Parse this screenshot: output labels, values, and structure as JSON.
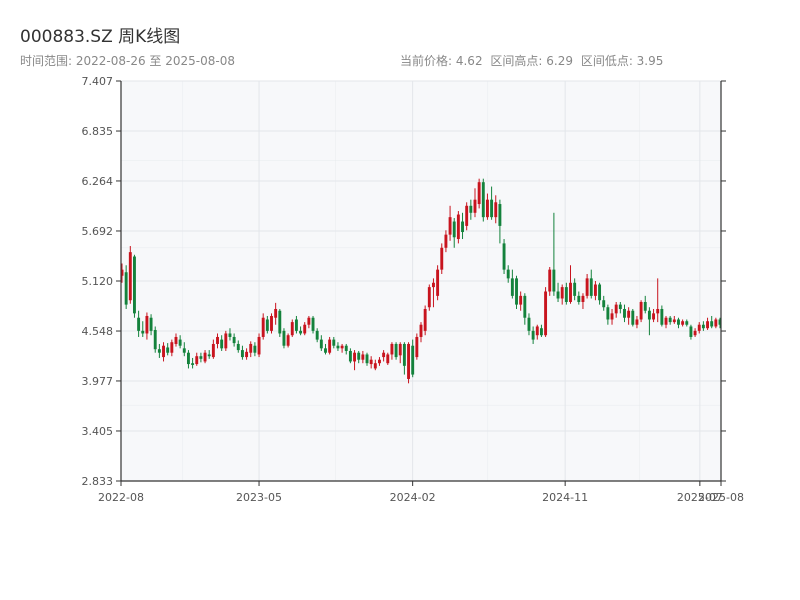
{
  "header": {
    "title": "000883.SZ 周K线图",
    "range_text": "时间范围: 2022-08-26 至 2025-08-08",
    "current_price": "当前价格: 4.62",
    "range_high": "区间高点: 6.29",
    "range_low": "区间低点: 3.95"
  },
  "colors": {
    "up": "#c8141e",
    "down": "#14823c",
    "plot_bg": "#f7f8fa",
    "axis": "#333333",
    "grid": "#e3e6ea"
  },
  "chart_data": {
    "type": "candlestick",
    "title": "000883.SZ 周K线图",
    "x_range": [
      "2022-08-26",
      "2025-08-08"
    ],
    "ylim": [
      2.833,
      7.407
    ],
    "y_ticks": [
      "2.833",
      "3.405",
      "3.977",
      "4.548",
      "5.120",
      "5.692",
      "6.264",
      "6.835",
      "7.407"
    ],
    "x_ticks": [
      {
        "label": "2022-08",
        "date": "2022-08-26"
      },
      {
        "label": "2023-05",
        "date": "2023-05-01"
      },
      {
        "label": "2024-02",
        "date": "2024-02-01"
      },
      {
        "label": "2024-11",
        "date": "2024-11-01"
      },
      {
        "label": "2025-07",
        "date": "2025-07-01"
      },
      {
        "label": "2025-08",
        "date": "2025-08-08"
      }
    ],
    "candles": [
      {
        "o": 5.18,
        "c": 5.25,
        "h": 5.32,
        "l": 5.1
      },
      {
        "o": 5.22,
        "c": 4.85,
        "h": 5.3,
        "l": 4.8
      },
      {
        "o": 4.9,
        "c": 5.45,
        "h": 5.52,
        "l": 4.86
      },
      {
        "o": 5.4,
        "c": 4.75,
        "h": 5.42,
        "l": 4.7
      },
      {
        "o": 4.7,
        "c": 4.55,
        "h": 4.78,
        "l": 4.48
      },
      {
        "o": 4.55,
        "c": 4.52,
        "h": 4.66,
        "l": 4.48
      },
      {
        "o": 4.52,
        "c": 4.72,
        "h": 4.76,
        "l": 4.45
      },
      {
        "o": 4.7,
        "c": 4.55,
        "h": 4.74,
        "l": 4.5
      },
      {
        "o": 4.56,
        "c": 4.34,
        "h": 4.6,
        "l": 4.3
      },
      {
        "o": 4.34,
        "c": 4.3,
        "h": 4.4,
        "l": 4.24
      },
      {
        "o": 4.25,
        "c": 4.38,
        "h": 4.42,
        "l": 4.2
      },
      {
        "o": 4.36,
        "c": 4.3,
        "h": 4.41,
        "l": 4.27
      },
      {
        "o": 4.3,
        "c": 4.42,
        "h": 4.45,
        "l": 4.26
      },
      {
        "o": 4.4,
        "c": 4.48,
        "h": 4.52,
        "l": 4.37
      },
      {
        "o": 4.45,
        "c": 4.38,
        "h": 4.5,
        "l": 4.35
      },
      {
        "o": 4.35,
        "c": 4.3,
        "h": 4.42,
        "l": 4.26
      },
      {
        "o": 4.3,
        "c": 4.17,
        "h": 4.33,
        "l": 4.12
      },
      {
        "o": 4.18,
        "c": 4.16,
        "h": 4.24,
        "l": 4.12
      },
      {
        "o": 4.17,
        "c": 4.26,
        "h": 4.3,
        "l": 4.15
      },
      {
        "o": 4.26,
        "c": 4.23,
        "h": 4.3,
        "l": 4.19
      },
      {
        "o": 4.2,
        "c": 4.3,
        "h": 4.33,
        "l": 4.18
      },
      {
        "o": 4.28,
        "c": 4.26,
        "h": 4.33,
        "l": 4.23
      },
      {
        "o": 4.25,
        "c": 4.4,
        "h": 4.45,
        "l": 4.23
      },
      {
        "o": 4.4,
        "c": 4.48,
        "h": 4.52,
        "l": 4.35
      },
      {
        "o": 4.45,
        "c": 4.35,
        "h": 4.5,
        "l": 4.32
      },
      {
        "o": 4.35,
        "c": 4.52,
        "h": 4.55,
        "l": 4.32
      },
      {
        "o": 4.52,
        "c": 4.48,
        "h": 4.58,
        "l": 4.44
      },
      {
        "o": 4.48,
        "c": 4.41,
        "h": 4.52,
        "l": 4.37
      },
      {
        "o": 4.4,
        "c": 4.33,
        "h": 4.44,
        "l": 4.3
      },
      {
        "o": 4.33,
        "c": 4.25,
        "h": 4.38,
        "l": 4.22
      },
      {
        "o": 4.25,
        "c": 4.31,
        "h": 4.35,
        "l": 4.22
      },
      {
        "o": 4.3,
        "c": 4.4,
        "h": 4.43,
        "l": 4.25
      },
      {
        "o": 4.38,
        "c": 4.3,
        "h": 4.42,
        "l": 4.26
      },
      {
        "o": 4.28,
        "c": 4.48,
        "h": 4.52,
        "l": 4.25
      },
      {
        "o": 4.48,
        "c": 4.7,
        "h": 4.75,
        "l": 4.45
      },
      {
        "o": 4.68,
        "c": 4.55,
        "h": 4.72,
        "l": 4.52
      },
      {
        "o": 4.55,
        "c": 4.72,
        "h": 4.75,
        "l": 4.52
      },
      {
        "o": 4.7,
        "c": 4.8,
        "h": 4.87,
        "l": 4.62
      },
      {
        "o": 4.78,
        "c": 4.52,
        "h": 4.8,
        "l": 4.48
      },
      {
        "o": 4.55,
        "c": 4.38,
        "h": 4.58,
        "l": 4.35
      },
      {
        "o": 4.38,
        "c": 4.5,
        "h": 4.52,
        "l": 4.36
      },
      {
        "o": 4.5,
        "c": 4.65,
        "h": 4.68,
        "l": 4.48
      },
      {
        "o": 4.68,
        "c": 4.55,
        "h": 4.72,
        "l": 4.52
      },
      {
        "o": 4.55,
        "c": 4.52,
        "h": 4.6,
        "l": 4.5
      },
      {
        "o": 4.52,
        "c": 4.62,
        "h": 4.65,
        "l": 4.5
      },
      {
        "o": 4.62,
        "c": 4.7,
        "h": 4.72,
        "l": 4.58
      },
      {
        "o": 4.7,
        "c": 4.55,
        "h": 4.72,
        "l": 4.52
      },
      {
        "o": 4.55,
        "c": 4.45,
        "h": 4.58,
        "l": 4.42
      },
      {
        "o": 4.45,
        "c": 4.35,
        "h": 4.5,
        "l": 4.32
      },
      {
        "o": 4.35,
        "c": 4.3,
        "h": 4.4,
        "l": 4.28
      },
      {
        "o": 4.3,
        "c": 4.45,
        "h": 4.48,
        "l": 4.28
      },
      {
        "o": 4.45,
        "c": 4.38,
        "h": 4.48,
        "l": 4.35
      },
      {
        "o": 4.38,
        "c": 4.35,
        "h": 4.42,
        "l": 4.32
      },
      {
        "o": 4.35,
        "c": 4.38,
        "h": 4.4,
        "l": 4.3
      },
      {
        "o": 4.38,
        "c": 4.32,
        "h": 4.4,
        "l": 4.28
      },
      {
        "o": 4.32,
        "c": 4.2,
        "h": 4.35,
        "l": 4.18
      },
      {
        "o": 4.2,
        "c": 4.3,
        "h": 4.33,
        "l": 4.1
      },
      {
        "o": 4.3,
        "c": 4.22,
        "h": 4.32,
        "l": 4.18
      },
      {
        "o": 4.22,
        "c": 4.28,
        "h": 4.32,
        "l": 4.18
      },
      {
        "o": 4.28,
        "c": 4.18,
        "h": 4.3,
        "l": 4.15
      },
      {
        "o": 4.17,
        "c": 4.22,
        "h": 4.26,
        "l": 4.12
      },
      {
        "o": 4.12,
        "c": 4.18,
        "h": 4.22,
        "l": 4.1
      },
      {
        "o": 4.18,
        "c": 4.22,
        "h": 4.25,
        "l": 4.15
      },
      {
        "o": 4.25,
        "c": 4.3,
        "h": 4.33,
        "l": 4.2
      },
      {
        "o": 4.18,
        "c": 4.28,
        "h": 4.3,
        "l": 4.16
      },
      {
        "o": 4.28,
        "c": 4.4,
        "h": 4.42,
        "l": 4.22
      },
      {
        "o": 4.4,
        "c": 4.25,
        "h": 4.42,
        "l": 4.22
      },
      {
        "o": 4.27,
        "c": 4.4,
        "h": 4.42,
        "l": 4.18
      },
      {
        "o": 4.4,
        "c": 4.15,
        "h": 4.42,
        "l": 4.05
      },
      {
        "o": 4.0,
        "c": 4.4,
        "h": 4.42,
        "l": 3.95
      },
      {
        "o": 4.38,
        "c": 4.05,
        "h": 4.45,
        "l": 4.02
      },
      {
        "o": 4.25,
        "c": 4.48,
        "h": 4.52,
        "l": 4.22
      },
      {
        "o": 4.48,
        "c": 4.62,
        "h": 4.65,
        "l": 4.42
      },
      {
        "o": 4.55,
        "c": 4.8,
        "h": 4.84,
        "l": 4.5
      },
      {
        "o": 4.82,
        "c": 5.05,
        "h": 5.08,
        "l": 4.78
      },
      {
        "o": 5.05,
        "c": 5.1,
        "h": 5.15,
        "l": 4.82
      },
      {
        "o": 4.95,
        "c": 5.25,
        "h": 5.3,
        "l": 4.9
      },
      {
        "o": 5.25,
        "c": 5.5,
        "h": 5.55,
        "l": 5.2
      },
      {
        "o": 5.5,
        "c": 5.65,
        "h": 5.7,
        "l": 5.45
      },
      {
        "o": 5.65,
        "c": 5.85,
        "h": 5.98,
        "l": 5.58
      },
      {
        "o": 5.8,
        "c": 5.62,
        "h": 5.84,
        "l": 5.5
      },
      {
        "o": 5.6,
        "c": 5.88,
        "h": 5.92,
        "l": 5.55
      },
      {
        "o": 5.8,
        "c": 5.68,
        "h": 5.9,
        "l": 5.6
      },
      {
        "o": 5.75,
        "c": 5.98,
        "h": 6.02,
        "l": 5.7
      },
      {
        "o": 5.98,
        "c": 5.9,
        "h": 6.05,
        "l": 5.82
      },
      {
        "o": 5.9,
        "c": 6.05,
        "h": 6.18,
        "l": 5.85
      },
      {
        "o": 6.0,
        "c": 6.25,
        "h": 6.29,
        "l": 5.95
      },
      {
        "o": 6.25,
        "c": 5.85,
        "h": 6.29,
        "l": 5.8
      },
      {
        "o": 5.85,
        "c": 6.05,
        "h": 6.12,
        "l": 5.82
      },
      {
        "o": 6.05,
        "c": 5.85,
        "h": 6.2,
        "l": 5.82
      },
      {
        "o": 5.85,
        "c": 6.02,
        "h": 6.1,
        "l": 5.78
      },
      {
        "o": 6.0,
        "c": 5.75,
        "h": 6.05,
        "l": 5.55
      },
      {
        "o": 5.55,
        "c": 5.25,
        "h": 5.6,
        "l": 5.2
      },
      {
        "o": 5.25,
        "c": 5.15,
        "h": 5.3,
        "l": 5.1
      },
      {
        "o": 5.15,
        "c": 4.95,
        "h": 5.25,
        "l": 4.92
      },
      {
        "o": 5.15,
        "c": 4.85,
        "h": 5.18,
        "l": 4.8
      },
      {
        "o": 4.85,
        "c": 4.95,
        "h": 5.0,
        "l": 4.78
      },
      {
        "o": 4.95,
        "c": 4.7,
        "h": 4.98,
        "l": 4.62
      },
      {
        "o": 4.7,
        "c": 4.55,
        "h": 4.75,
        "l": 4.5
      },
      {
        "o": 4.55,
        "c": 4.45,
        "h": 4.6,
        "l": 4.4
      },
      {
        "o": 4.5,
        "c": 4.6,
        "h": 4.62,
        "l": 4.45
      },
      {
        "o": 4.58,
        "c": 4.5,
        "h": 4.62,
        "l": 4.48
      },
      {
        "o": 4.5,
        "c": 5.0,
        "h": 5.05,
        "l": 4.48
      },
      {
        "o": 5.0,
        "c": 5.25,
        "h": 5.28,
        "l": 4.95
      },
      {
        "o": 5.25,
        "c": 5.0,
        "h": 5.9,
        "l": 4.95
      },
      {
        "o": 5.0,
        "c": 4.92,
        "h": 5.1,
        "l": 4.88
      },
      {
        "o": 4.92,
        "c": 5.05,
        "h": 5.08,
        "l": 4.85
      },
      {
        "o": 5.05,
        "c": 4.88,
        "h": 5.1,
        "l": 4.85
      },
      {
        "o": 4.88,
        "c": 5.1,
        "h": 5.3,
        "l": 4.86
      },
      {
        "o": 5.1,
        "c": 4.95,
        "h": 5.15,
        "l": 4.9
      },
      {
        "o": 4.95,
        "c": 4.88,
        "h": 5.0,
        "l": 4.85
      },
      {
        "o": 4.88,
        "c": 4.95,
        "h": 4.98,
        "l": 4.8
      },
      {
        "o": 4.95,
        "c": 5.15,
        "h": 5.2,
        "l": 4.92
      },
      {
        "o": 5.15,
        "c": 4.95,
        "h": 5.25,
        "l": 4.92
      },
      {
        "o": 4.95,
        "c": 5.08,
        "h": 5.12,
        "l": 4.9
      },
      {
        "o": 5.08,
        "c": 4.9,
        "h": 5.1,
        "l": 4.85
      },
      {
        "o": 4.9,
        "c": 4.82,
        "h": 4.95,
        "l": 4.78
      },
      {
        "o": 4.82,
        "c": 4.68,
        "h": 4.85,
        "l": 4.62
      },
      {
        "o": 4.68,
        "c": 4.75,
        "h": 4.8,
        "l": 4.62
      },
      {
        "o": 4.75,
        "c": 4.85,
        "h": 4.88,
        "l": 4.7
      },
      {
        "o": 4.85,
        "c": 4.8,
        "h": 4.88,
        "l": 4.75
      },
      {
        "o": 4.8,
        "c": 4.7,
        "h": 4.85,
        "l": 4.65
      },
      {
        "o": 4.7,
        "c": 4.78,
        "h": 4.82,
        "l": 4.62
      },
      {
        "o": 4.78,
        "c": 4.62,
        "h": 4.8,
        "l": 4.6
      },
      {
        "o": 4.62,
        "c": 4.68,
        "h": 4.72,
        "l": 4.58
      },
      {
        "o": 4.68,
        "c": 4.88,
        "h": 4.9,
        "l": 4.65
      },
      {
        "o": 4.88,
        "c": 4.78,
        "h": 4.95,
        "l": 4.75
      },
      {
        "o": 4.78,
        "c": 4.68,
        "h": 4.82,
        "l": 4.5
      },
      {
        "o": 4.68,
        "c": 4.75,
        "h": 4.8,
        "l": 4.65
      },
      {
        "o": 4.75,
        "c": 4.8,
        "h": 5.15,
        "l": 4.65
      },
      {
        "o": 4.8,
        "c": 4.62,
        "h": 4.84,
        "l": 4.6
      },
      {
        "o": 4.62,
        "c": 4.7,
        "h": 4.72,
        "l": 4.58
      },
      {
        "o": 4.7,
        "c": 4.65,
        "h": 4.72,
        "l": 4.62
      },
      {
        "o": 4.65,
        "c": 4.68,
        "h": 4.72,
        "l": 4.63
      },
      {
        "o": 4.68,
        "c": 4.62,
        "h": 4.7,
        "l": 4.58
      },
      {
        "o": 4.62,
        "c": 4.66,
        "h": 4.68,
        "l": 4.6
      },
      {
        "o": 4.66,
        "c": 4.62,
        "h": 4.68,
        "l": 4.6
      },
      {
        "o": 4.6,
        "c": 4.48,
        "h": 4.62,
        "l": 4.45
      },
      {
        "o": 4.5,
        "c": 4.55,
        "h": 4.58,
        "l": 4.48
      },
      {
        "o": 4.55,
        "c": 4.62,
        "h": 4.65,
        "l": 4.52
      },
      {
        "o": 4.62,
        "c": 4.58,
        "h": 4.66,
        "l": 4.55
      },
      {
        "o": 4.58,
        "c": 4.66,
        "h": 4.7,
        "l": 4.56
      },
      {
        "o": 4.66,
        "c": 4.6,
        "h": 4.72,
        "l": 4.58
      },
      {
        "o": 4.6,
        "c": 4.68,
        "h": 4.7,
        "l": 4.58
      },
      {
        "o": 4.68,
        "c": 4.62,
        "h": 4.7,
        "l": 4.58
      }
    ]
  }
}
